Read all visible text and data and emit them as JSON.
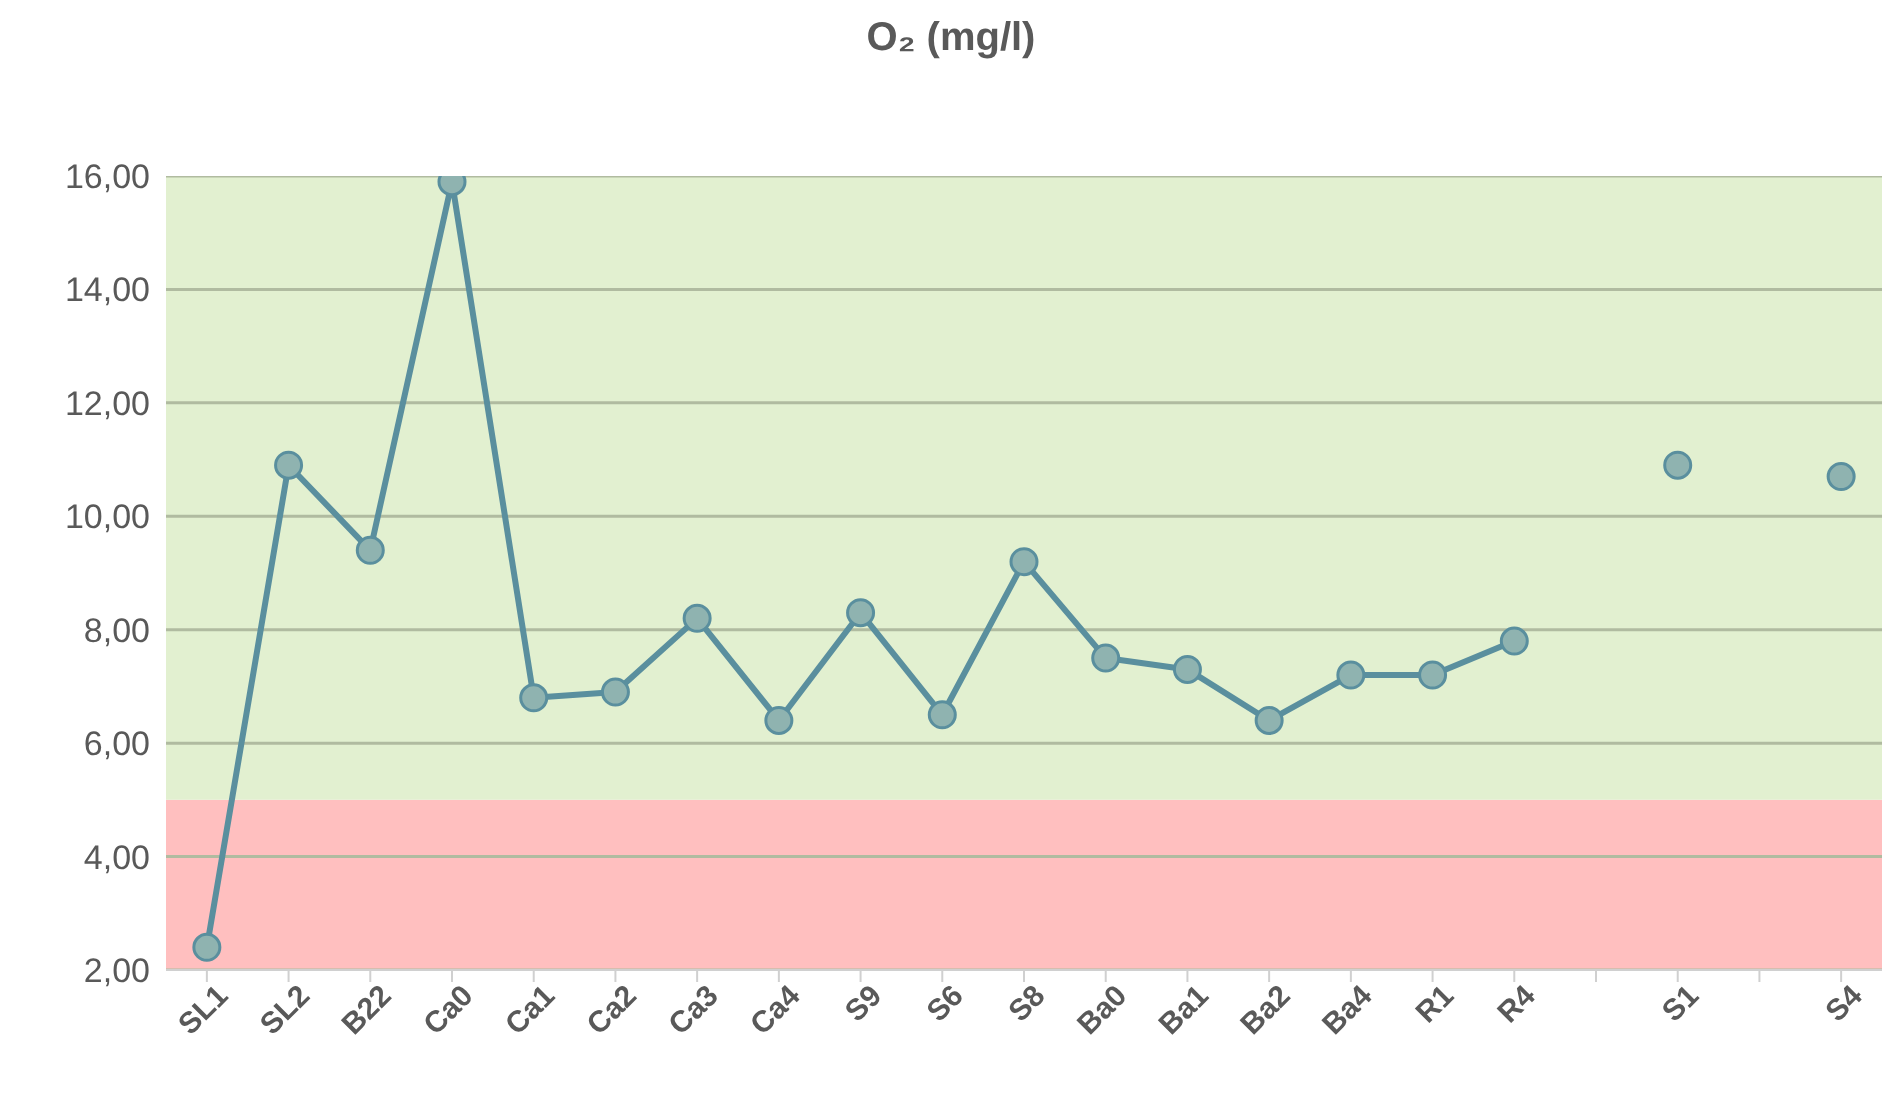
{
  "chart_data": {
    "type": "line",
    "title": "O₂ (mg/l)",
    "categories": [
      "SL1",
      "SL2",
      "B22",
      "Ca0",
      "Ca1",
      "Ca2",
      "Ca3",
      "Ca4",
      "S9",
      "S6",
      "S8",
      "Ba0",
      "Ba1",
      "Ba2",
      "Ba4",
      "R1",
      "R4",
      null,
      "S1",
      null,
      "S4"
    ],
    "series": [
      {
        "color": "#5a8f9e",
        "values": [
          2.4,
          10.9,
          9.4,
          15.9,
          6.8,
          6.9,
          8.2,
          6.4,
          8.3,
          6.5,
          9.2,
          7.5,
          7.3,
          6.4,
          7.2,
          7.2,
          7.8,
          null,
          10.9,
          null,
          10.7
        ]
      }
    ],
    "ylim": [
      2,
      16
    ],
    "yticks": [
      {
        "value": 2,
        "label": "2,00"
      },
      {
        "value": 4,
        "label": "4,00"
      },
      {
        "value": 6,
        "label": "6,00"
      },
      {
        "value": 8,
        "label": "8,00"
      },
      {
        "value": 10,
        "label": "10,00"
      },
      {
        "value": 12,
        "label": "12,00"
      },
      {
        "value": 14,
        "label": "14,00"
      },
      {
        "value": 16,
        "label": "16,00"
      }
    ],
    "bands": [
      {
        "axis": "y",
        "from": 2,
        "to": 5,
        "color": "#ffbfbf"
      },
      {
        "axis": "y",
        "from": 5,
        "to": 16,
        "color": "#e2f0d0"
      }
    ],
    "grid": "y",
    "marker": "circle",
    "line_style": "solid"
  }
}
